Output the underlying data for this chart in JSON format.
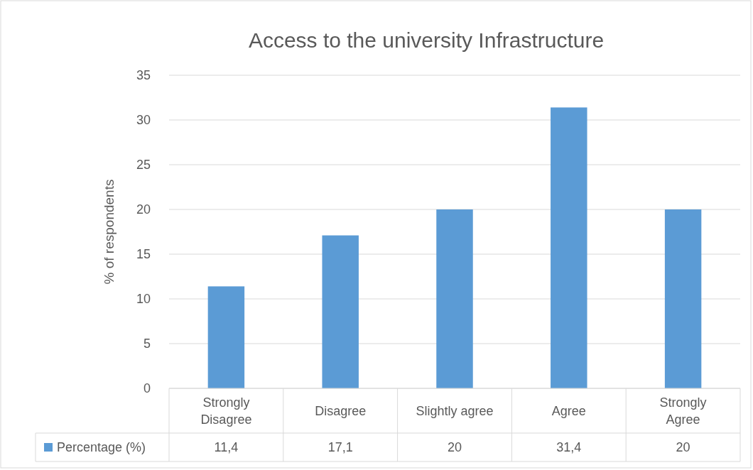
{
  "chart_data": {
    "type": "bar",
    "title": "Access to the university Infrastructure",
    "ylabel": "% of respondents",
    "categories": [
      "Strongly Disagree",
      "Disagree",
      "Slightly agree",
      "Agree",
      "Strongly Agree"
    ],
    "series": [
      {
        "name": "Percentage (%)",
        "color": "#5b9bd5",
        "values": [
          11.4,
          17.1,
          20,
          31.4,
          20
        ],
        "value_labels": [
          "11,4",
          "17,1",
          "20",
          "31,4",
          "20"
        ]
      }
    ],
    "ylim": [
      0,
      35
    ],
    "yticks": [
      0,
      5,
      10,
      15,
      20,
      25,
      30,
      35
    ],
    "grid": "y",
    "legend": "bottom"
  }
}
